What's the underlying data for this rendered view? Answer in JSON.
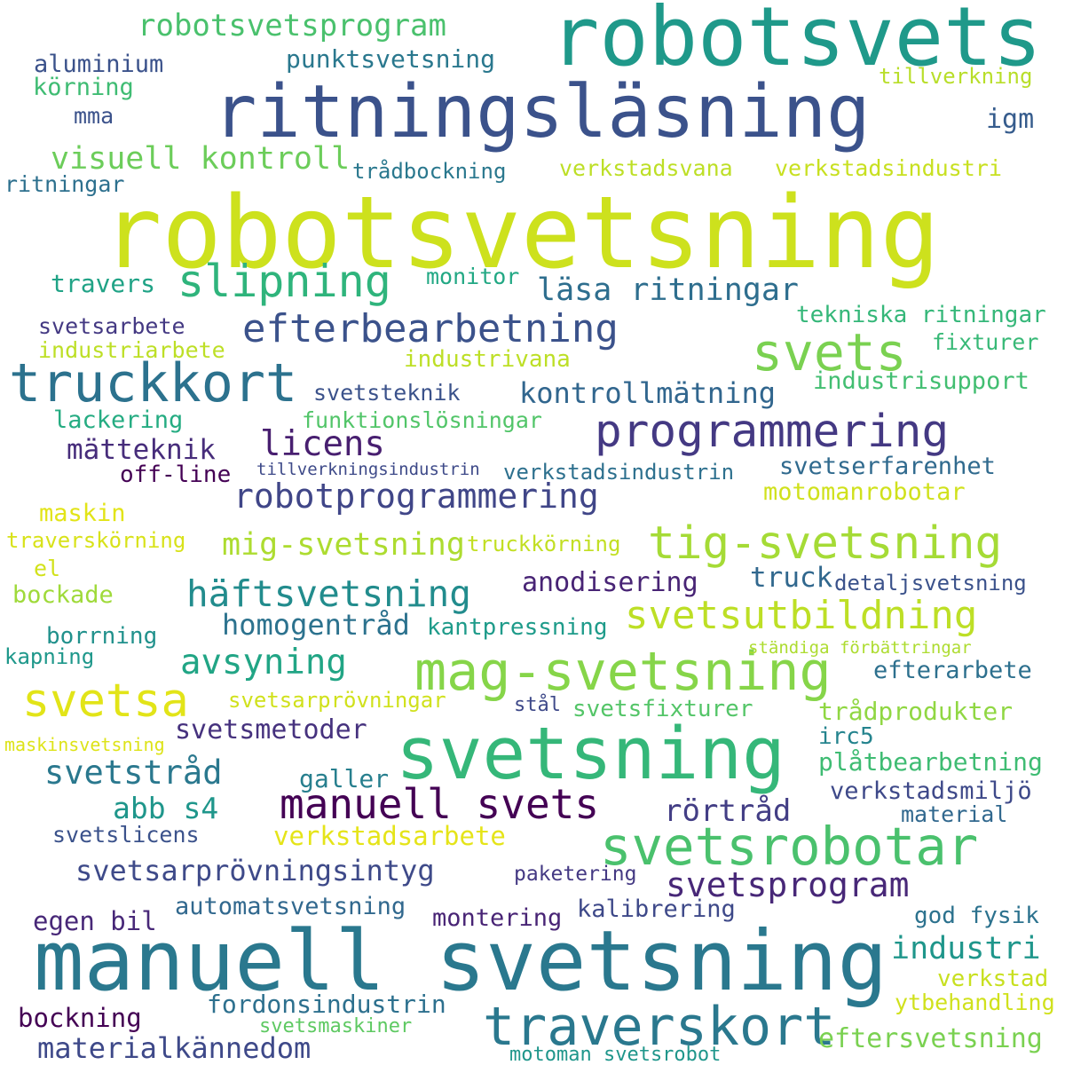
{
  "words": [
    {
      "text": "robotsvetsning",
      "color": "#cde11d"
    },
    {
      "text": "manuell svetsning",
      "color": "#2a788e"
    },
    {
      "text": "robotsvets",
      "color": "#1f998a"
    },
    {
      "text": "ritningsläsning",
      "color": "#3b528b"
    },
    {
      "text": "svetsning",
      "color": "#35b779"
    },
    {
      "text": "truckkort",
      "color": "#2c728e"
    },
    {
      "text": "traverskort",
      "color": "#2a788e"
    },
    {
      "text": "mag-svetsning",
      "color": "#86d549"
    },
    {
      "text": "svetsrobotar",
      "color": "#4ac16d"
    },
    {
      "text": "svets",
      "color": "#7ad151"
    },
    {
      "text": "tig-svetsning",
      "color": "#a5db36"
    },
    {
      "text": "programmering",
      "color": "#443983"
    },
    {
      "text": "svetsutbildning",
      "color": "#bddf26"
    },
    {
      "text": "efterbearbetning",
      "color": "#3b528b"
    },
    {
      "text": "manuell svets",
      "color": "#440154"
    },
    {
      "text": "svetsa",
      "color": "#e2e418"
    },
    {
      "text": "slipning",
      "color": "#2fb47c"
    },
    {
      "text": "häftsvetsning",
      "color": "#228c8d"
    },
    {
      "text": "robotprogrammering",
      "color": "#404688"
    },
    {
      "text": "svetsprogram",
      "color": "#482878"
    },
    {
      "text": "läsa ritningar",
      "color": "#2e6e8e"
    },
    {
      "text": "visuell kontroll",
      "color": "#6ccd5a"
    },
    {
      "text": "avsyning",
      "color": "#21a585"
    },
    {
      "text": "licens",
      "color": "#481f70"
    },
    {
      "text": "robotsvetsprogram",
      "color": "#4ac16d"
    },
    {
      "text": "svetstråd",
      "color": "#2a788e"
    },
    {
      "text": "mig-svetsning",
      "color": "#addc30"
    },
    {
      "text": "kontrollmätning",
      "color": "#31668e"
    },
    {
      "text": "homogentråd",
      "color": "#2c728e"
    },
    {
      "text": "abb s4",
      "color": "#1f968b"
    },
    {
      "text": "mätteknik",
      "color": "#472d7b"
    },
    {
      "text": "materialkännedom",
      "color": "#3e4989"
    },
    {
      "text": "svetsarprövningsintyg",
      "color": "#3e4a89"
    },
    {
      "text": "svetsmetoder",
      "color": "#46327e"
    },
    {
      "text": "rörtråd",
      "color": "#433e85"
    },
    {
      "text": "anodisering",
      "color": "#482475"
    },
    {
      "text": "punktsvetsning",
      "color": "#2a788e"
    },
    {
      "text": "verkstadsarbete",
      "color": "#e5e419"
    },
    {
      "text": "verkstadsvana",
      "color": "#bddf26"
    },
    {
      "text": "verkstadsindustri",
      "color": "#c8e020"
    },
    {
      "text": "motomanrobotar",
      "color": "#d0e11c"
    },
    {
      "text": "verkstadsindustrin",
      "color": "#2d708e"
    },
    {
      "text": "svetserfarenhet",
      "color": "#306a8e"
    },
    {
      "text": "tekniska ritningar",
      "color": "#35b779"
    },
    {
      "text": "industrisupport",
      "color": "#42be71"
    },
    {
      "text": "funktionslösningar",
      "color": "#52c569"
    },
    {
      "text": "industrivana",
      "color": "#bddf26"
    },
    {
      "text": "svetsteknik",
      "color": "#3b528b"
    },
    {
      "text": "aluminium",
      "color": "#3b528b"
    },
    {
      "text": "körning",
      "color": "#3fbc73"
    },
    {
      "text": "ritningar",
      "color": "#2d708e"
    },
    {
      "text": "trådbockning",
      "color": "#2a788e"
    },
    {
      "text": "tillverkning",
      "color": "#b8de29"
    },
    {
      "text": "igm",
      "color": "#365c8d"
    },
    {
      "text": "mma",
      "color": "#3b528b"
    },
    {
      "text": "travers",
      "color": "#20a386"
    },
    {
      "text": "monitor",
      "color": "#22a884"
    },
    {
      "text": "svetsarbete",
      "color": "#443983"
    },
    {
      "text": "industriarbete",
      "color": "#bddf26"
    },
    {
      "text": "fixturer",
      "color": "#38b977"
    },
    {
      "text": "lackering",
      "color": "#25ac82"
    },
    {
      "text": "off-line",
      "color": "#440154"
    },
    {
      "text": "tillverkningsindustrin",
      "color": "#3e4a89"
    },
    {
      "text": "maskin",
      "color": "#e2e418"
    },
    {
      "text": "traverskörning",
      "color": "#d8e219"
    },
    {
      "text": "truckkörning",
      "color": "#c2df23"
    },
    {
      "text": "el",
      "color": "#d2e21b"
    },
    {
      "text": "bockade",
      "color": "#9fda3a"
    },
    {
      "text": "truck",
      "color": "#31688e"
    },
    {
      "text": "detaljsvetsning",
      "color": "#3b528b"
    },
    {
      "text": "borrning",
      "color": "#21918c"
    },
    {
      "text": "kantpressning",
      "color": "#1e9b8a"
    },
    {
      "text": "kapning",
      "color": "#1f988b"
    },
    {
      "text": "ständiga förbättringar",
      "color": "#addc30"
    },
    {
      "text": "efterarbete",
      "color": "#2d708e"
    },
    {
      "text": "svetsarprövningar",
      "color": "#d0e11c"
    },
    {
      "text": "stål",
      "color": "#3e4989"
    },
    {
      "text": "svetsfixturer",
      "color": "#54c568"
    },
    {
      "text": "trådprodukter",
      "color": "#90d743"
    },
    {
      "text": "maskinsvetsning",
      "color": "#dde318"
    },
    {
      "text": "irc5",
      "color": "#25848e"
    },
    {
      "text": "plåtbearbetning",
      "color": "#3fbc73"
    },
    {
      "text": "galler",
      "color": "#277f8e"
    },
    {
      "text": "verkstadsmiljö",
      "color": "#3e4989"
    },
    {
      "text": "material",
      "color": "#31688e"
    },
    {
      "text": "svetslicens",
      "color": "#3b528b"
    },
    {
      "text": "paketering",
      "color": "#443983"
    },
    {
      "text": "automatsvetsning",
      "color": "#31688e"
    },
    {
      "text": "egen bil",
      "color": "#482878"
    },
    {
      "text": "montering",
      "color": "#482475"
    },
    {
      "text": "kalibrering",
      "color": "#3e4989"
    },
    {
      "text": "god fysik",
      "color": "#2c728e"
    },
    {
      "text": "industri",
      "color": "#1f968b"
    },
    {
      "text": "verkstad",
      "color": "#c8e020"
    },
    {
      "text": "ytbehandling",
      "color": "#d0e11c"
    },
    {
      "text": "bockning",
      "color": "#440154"
    },
    {
      "text": "fordonsindustrin",
      "color": "#2d708e"
    },
    {
      "text": "svetsmaskiner",
      "color": "#5ec962"
    },
    {
      "text": "eftersvetsning",
      "color": "#7ad151"
    },
    {
      "text": "motoman svetsrobot",
      "color": "#1f968b"
    }
  ]
}
